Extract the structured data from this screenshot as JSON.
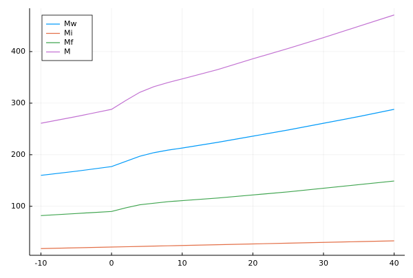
{
  "chart_data": {
    "type": "line",
    "x": [
      -10,
      -5,
      0,
      2,
      4,
      6,
      8,
      10,
      15,
      20,
      25,
      30,
      35,
      40
    ],
    "series": [
      {
        "name": "Mw",
        "color": "#009af9",
        "values": [
          160,
          168,
          177,
          187,
          197,
          204,
          209,
          213,
          224,
          236,
          248,
          261,
          274,
          288
        ]
      },
      {
        "name": "Mi",
        "color": "#e36f47",
        "values": [
          18,
          19.5,
          21,
          21.6,
          22.2,
          22.8,
          23.4,
          24,
          25.5,
          27,
          28.5,
          30,
          31.5,
          33
        ]
      },
      {
        "name": "Mf",
        "color": "#3ea44e",
        "values": [
          82,
          86,
          90,
          97,
          103,
          106,
          109,
          111,
          116,
          122,
          128,
          135,
          142,
          149
        ]
      },
      {
        "name": "M",
        "color": "#c271d2",
        "values": [
          261,
          274,
          288,
          305,
          321,
          332,
          340,
          347,
          365,
          386,
          406,
          427,
          449,
          471
        ]
      }
    ],
    "xlim": [
      -11.6,
      41.5
    ],
    "ylim": [
      5,
      484
    ],
    "xticks": [
      -10,
      0,
      10,
      20,
      30,
      40
    ],
    "yticks": [
      100,
      200,
      300,
      400
    ],
    "grid": true,
    "legend": "top-left"
  }
}
